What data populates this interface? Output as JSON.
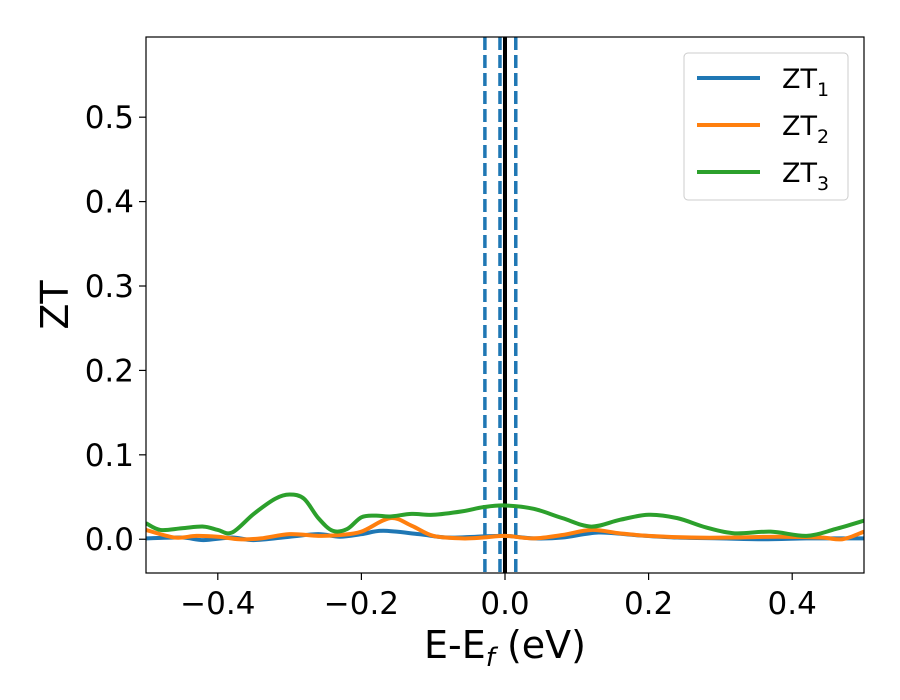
{
  "chart_data": {
    "type": "line",
    "xlabel_main": "E-E",
    "xlabel_sub": "f",
    "xlabel_unit": " (eV)",
    "ylabel": "ZT",
    "xlim": [
      -0.5,
      0.5
    ],
    "ylim": [
      -0.04,
      0.595
    ],
    "x_ticks": [
      -0.4,
      -0.2,
      0.0,
      0.2,
      0.4
    ],
    "x_tick_labels": [
      "−0.4",
      "−0.2",
      "0.0",
      "0.2",
      "0.4"
    ],
    "y_ticks": [
      0.0,
      0.1,
      0.2,
      0.3,
      0.4,
      0.5
    ],
    "y_tick_labels": [
      "0.0",
      "0.1",
      "0.2",
      "0.3",
      "0.4",
      "0.5"
    ],
    "grid": false,
    "legend_position": "top-right",
    "vertical_lines": [
      {
        "x": 0.0,
        "style": "solid",
        "color": "#000000"
      },
      {
        "x": -0.028,
        "style": "dashed",
        "color": "#1f77b4"
      },
      {
        "x": -0.007,
        "style": "dashed",
        "color": "#1f77b4"
      },
      {
        "x": 0.015,
        "style": "dashed",
        "color": "#1f77b4"
      }
    ],
    "series": [
      {
        "name_main": "ZT",
        "name_sub": "1",
        "color": "#1f77b4",
        "x": [
          -0.5,
          -0.45,
          -0.42,
          -0.38,
          -0.35,
          -0.3,
          -0.26,
          -0.23,
          -0.2,
          -0.17,
          -0.12,
          -0.08,
          -0.04,
          0.0,
          0.04,
          0.08,
          0.13,
          0.18,
          0.24,
          0.3,
          0.36,
          0.42,
          0.46,
          0.5
        ],
        "y": [
          0.001,
          0.002,
          -0.001,
          0.002,
          -0.001,
          0.003,
          0.006,
          0.003,
          0.006,
          0.01,
          0.006,
          0.002,
          0.003,
          0.004,
          0.001,
          0.002,
          0.008,
          0.005,
          0.002,
          0.001,
          0.0,
          0.001,
          0.001,
          0.001
        ]
      },
      {
        "name_main": "ZT",
        "name_sub": "2",
        "color": "#ff7f0e",
        "x": [
          -0.5,
          -0.46,
          -0.43,
          -0.4,
          -0.37,
          -0.34,
          -0.3,
          -0.26,
          -0.23,
          -0.2,
          -0.16,
          -0.13,
          -0.1,
          -0.06,
          -0.03,
          0.0,
          0.04,
          0.08,
          0.12,
          0.16,
          0.2,
          0.26,
          0.32,
          0.38,
          0.44,
          0.47,
          0.5
        ],
        "y": [
          0.011,
          0.002,
          0.004,
          0.003,
          0.0,
          0.001,
          0.006,
          0.004,
          0.005,
          0.009,
          0.025,
          0.016,
          0.004,
          0.001,
          0.002,
          0.004,
          0.001,
          0.005,
          0.011,
          0.007,
          0.004,
          0.002,
          0.002,
          0.003,
          0.002,
          0.0,
          0.009
        ]
      },
      {
        "name_main": "ZT",
        "name_sub": "3",
        "color": "#2ca02c",
        "x": [
          -0.5,
          -0.48,
          -0.45,
          -0.42,
          -0.4,
          -0.38,
          -0.35,
          -0.32,
          -0.3,
          -0.28,
          -0.26,
          -0.24,
          -0.22,
          -0.2,
          -0.18,
          -0.16,
          -0.13,
          -0.1,
          -0.06,
          -0.03,
          0.0,
          0.04,
          0.08,
          0.12,
          0.16,
          0.2,
          0.24,
          0.28,
          0.32,
          0.37,
          0.42,
          0.46,
          0.5
        ],
        "y": [
          0.019,
          0.011,
          0.013,
          0.015,
          0.011,
          0.008,
          0.03,
          0.048,
          0.053,
          0.048,
          0.025,
          0.01,
          0.012,
          0.026,
          0.028,
          0.027,
          0.03,
          0.029,
          0.033,
          0.038,
          0.04,
          0.036,
          0.025,
          0.015,
          0.023,
          0.029,
          0.025,
          0.014,
          0.007,
          0.009,
          0.004,
          0.012,
          0.022
        ]
      }
    ]
  }
}
